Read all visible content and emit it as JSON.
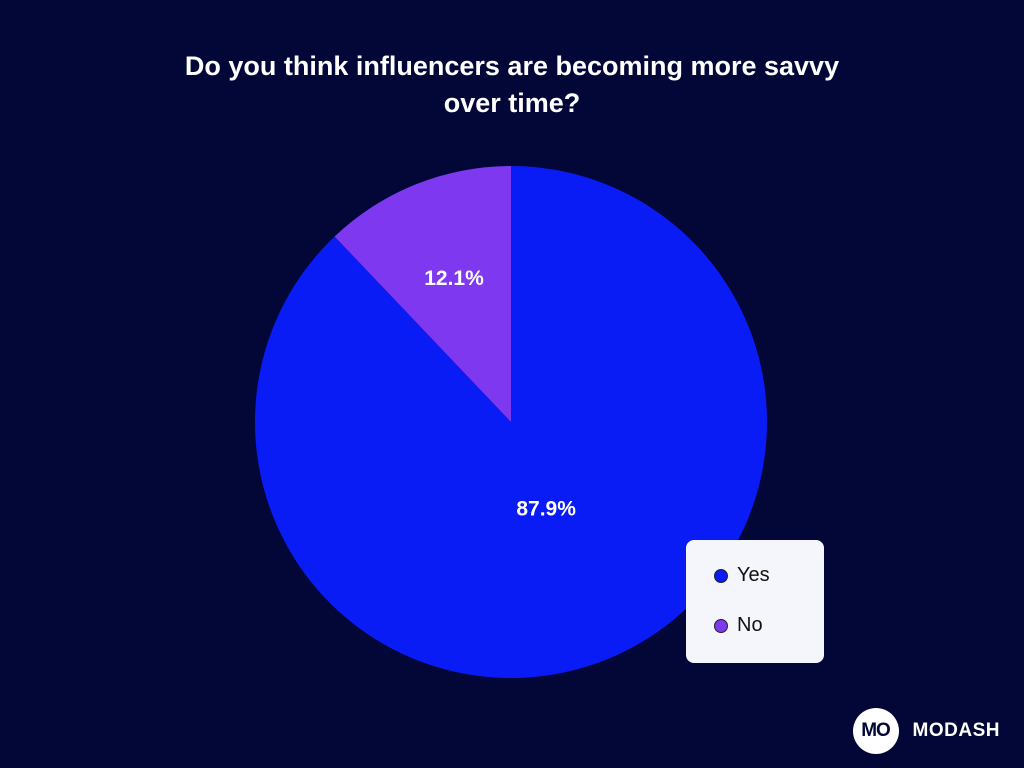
{
  "colors": {
    "background": "#020738",
    "yes": "#0a1cf6",
    "no": "#7d38f0"
  },
  "chart_data": {
    "type": "pie",
    "title": "Do you think influencers are becoming more savvy over time?",
    "slices": [
      {
        "label": "Yes",
        "value": 87.9,
        "display": "87.9%",
        "color": "#0a1cf6"
      },
      {
        "label": "No",
        "value": 12.1,
        "display": "12.1%",
        "color": "#7d38f0"
      }
    ],
    "legend_position": "bottom-right"
  },
  "legend": {
    "items": [
      {
        "label": "Yes",
        "color": "#0a1cf6"
      },
      {
        "label": "No",
        "color": "#7d38f0"
      }
    ]
  },
  "brand": {
    "logo_text": "MO",
    "name": "MODASH"
  }
}
